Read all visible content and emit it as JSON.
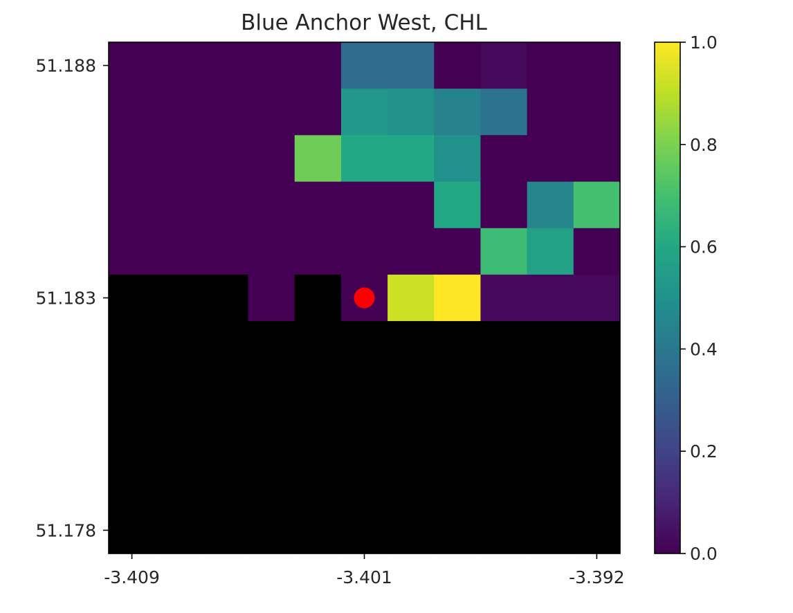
{
  "chart_data": {
    "type": "heatmap",
    "title": "Blue Anchor West, CHL",
    "xlabel": "",
    "ylabel": "",
    "x_ticks": [
      "-3.409",
      "-3.401",
      "-3.392"
    ],
    "y_ticks": [
      "51.188",
      "51.183",
      "51.178"
    ],
    "colorbar": {
      "colormap": "viridis",
      "range": [
        0.0,
        1.0
      ],
      "ticks": [
        "0.0",
        "0.2",
        "0.4",
        "0.6",
        "0.8",
        "1.0"
      ]
    },
    "masked_color": "#000000",
    "grid_rows": 11,
    "grid_cols": 11,
    "cells": [
      [
        0.0,
        0.0,
        0.0,
        0.0,
        0.0,
        0.35,
        0.35,
        0.0,
        0.02,
        0.0,
        0.0
      ],
      [
        0.0,
        0.0,
        0.0,
        0.0,
        0.0,
        0.53,
        0.51,
        0.44,
        0.38,
        0.0,
        0.0
      ],
      [
        0.0,
        0.0,
        0.0,
        0.0,
        0.78,
        0.6,
        0.6,
        0.5,
        0.0,
        0.0,
        0.0
      ],
      [
        0.0,
        0.0,
        0.0,
        0.0,
        0.0,
        0.0,
        0.0,
        0.6,
        0.0,
        0.45,
        0.7
      ],
      [
        0.0,
        0.0,
        0.0,
        0.0,
        0.0,
        0.0,
        0.0,
        0.0,
        0.68,
        0.57,
        0.0
      ],
      [
        null,
        null,
        null,
        0.0,
        null,
        0.0,
        0.92,
        1.0,
        0.02,
        0.02,
        0.02
      ],
      [
        null,
        null,
        null,
        null,
        null,
        null,
        null,
        null,
        null,
        null,
        null
      ],
      [
        null,
        null,
        null,
        null,
        null,
        null,
        null,
        null,
        null,
        null,
        null
      ],
      [
        null,
        null,
        null,
        null,
        null,
        null,
        null,
        null,
        null,
        null,
        null
      ],
      [
        null,
        null,
        null,
        null,
        null,
        null,
        null,
        null,
        null,
        null,
        null
      ],
      [
        null,
        null,
        null,
        null,
        null,
        null,
        null,
        null,
        null,
        null,
        null
      ]
    ],
    "marker": {
      "row": 5,
      "col": 5,
      "color": "#ff0000"
    }
  }
}
